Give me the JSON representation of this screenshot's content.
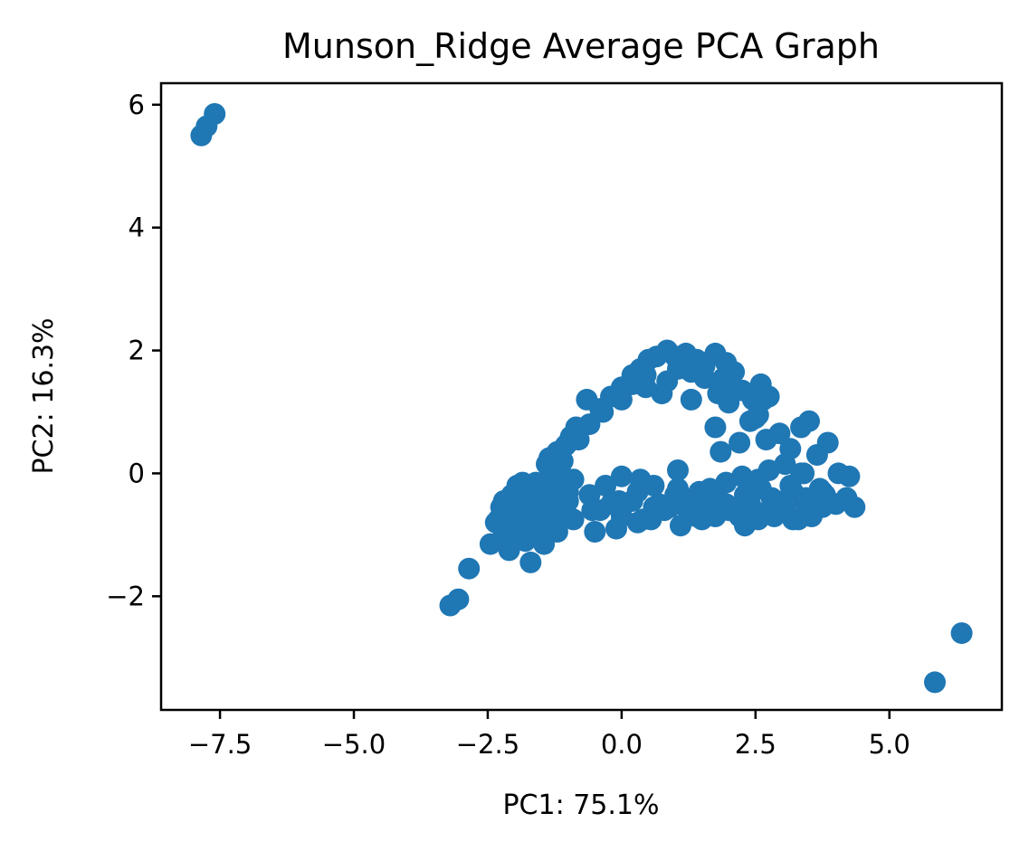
{
  "chart_data": {
    "type": "scatter",
    "title": "Munson_Ridge Average PCA Graph",
    "xlabel": "PC1: 75.1%",
    "ylabel": "PC2: 16.3%",
    "xlim": [
      -8.6,
      7.1
    ],
    "ylim": [
      -3.85,
      6.35
    ],
    "x_ticks": [
      -7.5,
      -5.0,
      -2.5,
      0.0,
      2.5,
      5.0
    ],
    "x_tick_labels": [
      "−7.5",
      "−5.0",
      "−2.5",
      "0.0",
      "2.5",
      "5.0"
    ],
    "y_ticks": [
      -2,
      0,
      2,
      4,
      6
    ],
    "y_tick_labels": [
      "−2",
      "0",
      "2",
      "4",
      "6"
    ],
    "grid": false,
    "legend": "none",
    "marker_color": "#1f77b4",
    "series": [
      {
        "x": [
          -7.85,
          -7.75,
          -7.6,
          -3.2,
          -3.05,
          -2.85,
          -2.45,
          -2.35,
          -2.25,
          -2.2,
          -2.15,
          -2.1,
          -2.05,
          -2.0,
          -1.95,
          -1.9,
          -1.85,
          -1.8,
          -1.75,
          -1.7,
          -1.65,
          -1.6,
          -1.55,
          -1.5,
          -1.45,
          -1.4,
          -1.35,
          -1.3,
          -1.25,
          -1.2,
          -1.15,
          -1.1,
          -1.05,
          -1.0,
          -0.95,
          -0.9,
          -0.85,
          -2.3,
          -2.1,
          -1.95,
          -1.8,
          -1.7,
          -1.6,
          -1.5,
          -1.4,
          -1.3,
          -1.2,
          -1.1,
          -1.0,
          -2.2,
          -2.0,
          -1.85,
          -1.65,
          -1.45,
          -1.25,
          -1.05,
          -1.7,
          -1.3,
          -0.9,
          -0.55,
          -0.3,
          -1.4,
          -1.2,
          -1.0,
          -0.8,
          -0.6,
          -0.4,
          -0.2,
          0.0,
          0.2,
          0.35,
          0.5,
          0.65,
          0.85,
          1.0,
          1.2,
          1.4,
          1.55,
          1.75,
          1.9,
          2.1,
          2.25,
          2.45,
          2.6,
          2.75,
          -0.65,
          -0.35,
          0.0,
          0.2,
          0.45,
          0.75,
          1.05,
          1.3,
          1.55,
          1.8,
          2.0,
          2.15,
          2.4,
          2.65,
          0.45,
          0.85,
          1.3,
          1.95,
          2.5,
          2.7,
          2.95,
          3.15,
          3.35,
          3.5,
          3.65,
          3.85,
          4.05,
          4.25,
          1.75,
          1.85,
          2.2,
          2.55,
          3.05,
          3.35,
          3.75,
          -0.6,
          -0.4,
          -0.2,
          0.0,
          0.2,
          0.4,
          0.6,
          0.8,
          1.0,
          1.2,
          1.4,
          1.6,
          1.8,
          2.0,
          2.2,
          2.4,
          2.6,
          2.8,
          3.0,
          3.2,
          3.4,
          3.6,
          3.8,
          4.0,
          4.2,
          4.35,
          -0.5,
          -0.1,
          0.3,
          0.55,
          0.9,
          1.1,
          1.5,
          1.75,
          2.05,
          2.3,
          2.55,
          2.85,
          3.05,
          3.3,
          3.55,
          3.75,
          0.0,
          0.35,
          0.6,
          1.05,
          1.45,
          1.65,
          1.95,
          2.25,
          2.55,
          2.75,
          3.15,
          3.4,
          -0.05,
          0.3,
          0.7,
          1.05,
          1.35,
          1.65,
          1.95,
          2.3,
          2.6,
          2.9,
          3.2,
          3.45,
          3.7,
          5.85,
          6.35
        ],
        "y": [
          5.5,
          5.65,
          5.85,
          -2.15,
          -2.05,
          -1.55,
          -1.15,
          -0.8,
          -0.55,
          -1.0,
          -0.85,
          -0.6,
          -0.35,
          -1.05,
          -0.2,
          -0.7,
          -0.45,
          -0.9,
          -0.3,
          -1.45,
          -0.6,
          -0.15,
          -0.85,
          -0.4,
          -1.15,
          -0.7,
          0.25,
          -0.5,
          -0.2,
          -0.95,
          0.05,
          -0.65,
          0.45,
          -0.3,
          0.6,
          -0.1,
          0.75,
          -0.75,
          -1.25,
          -0.5,
          -1.1,
          -0.25,
          -0.95,
          -0.65,
          -0.4,
          -0.05,
          -0.75,
          0.2,
          -0.45,
          -0.45,
          -0.8,
          -0.15,
          -0.6,
          -0.3,
          0.15,
          -0.55,
          -1.0,
          -0.85,
          -0.75,
          -0.6,
          -0.2,
          0.15,
          0.35,
          0.5,
          0.55,
          0.8,
          1.05,
          1.25,
          1.4,
          1.6,
          1.7,
          1.85,
          1.9,
          2.0,
          1.9,
          1.95,
          1.85,
          1.75,
          1.95,
          1.55,
          1.65,
          1.35,
          1.2,
          1.45,
          1.25,
          1.2,
          1.0,
          1.2,
          1.45,
          1.6,
          1.3,
          1.7,
          1.2,
          1.55,
          1.3,
          1.15,
          1.35,
          0.85,
          1.2,
          1.4,
          1.5,
          1.65,
          1.8,
          0.9,
          0.55,
          0.65,
          0.4,
          0.75,
          0.85,
          0.3,
          0.5,
          0.0,
          -0.05,
          0.75,
          0.35,
          0.5,
          0.95,
          0.15,
          0.0,
          -0.3,
          -0.35,
          -0.6,
          -0.5,
          -0.7,
          -0.45,
          -0.75,
          -0.55,
          -0.6,
          -0.35,
          -0.55,
          -0.7,
          -0.5,
          -0.45,
          -0.6,
          -0.7,
          -0.5,
          -0.65,
          -0.4,
          -0.55,
          -0.75,
          -0.45,
          -0.6,
          -0.35,
          -0.5,
          -0.4,
          -0.55,
          -0.95,
          -0.9,
          -0.8,
          -0.75,
          -0.55,
          -0.85,
          -0.75,
          -0.7,
          -0.6,
          -0.85,
          -0.75,
          -0.7,
          -0.6,
          -0.75,
          -0.7,
          -0.55,
          -0.05,
          -0.1,
          -0.2,
          0.05,
          -0.3,
          -0.25,
          -0.15,
          -0.05,
          -0.1,
          0.05,
          -0.2,
          0.0,
          -0.45,
          -0.3,
          -0.5,
          -0.25,
          -0.4,
          -0.3,
          -0.5,
          -0.35,
          -0.25,
          -0.45,
          -0.3,
          -0.4,
          -0.25,
          -3.4,
          -2.6
        ]
      }
    ]
  }
}
